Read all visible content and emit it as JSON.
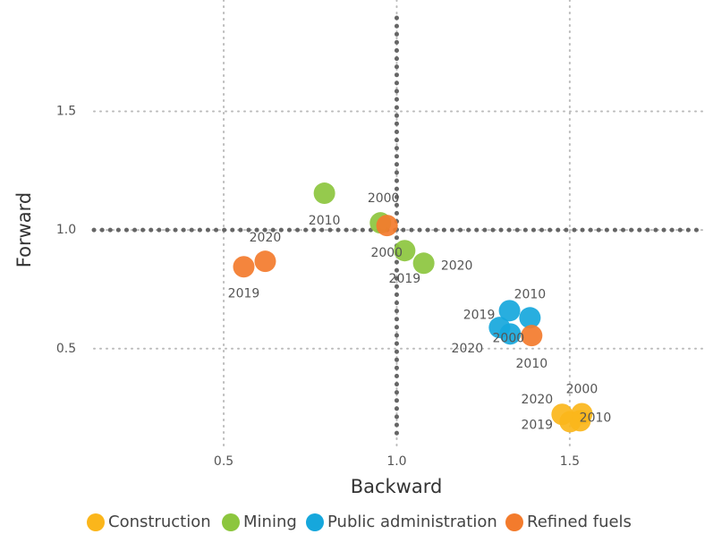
{
  "chart_data": {
    "type": "scatter",
    "xlabel": "Backward",
    "ylabel": "Forward",
    "xlim": [
      0.125,
      1.87
    ],
    "ylim": [
      0.141,
      1.894
    ],
    "xticks": [
      0.5,
      {
        "value": 1,
        "label": "1.0"
      },
      1.5
    ],
    "yticks": [
      0.5,
      {
        "value": 1,
        "label": "1.0"
      },
      1.5
    ],
    "grid": true,
    "reference_x": 1,
    "reference_y": 1,
    "legend": "bottom",
    "series": [
      {
        "name": "Construction",
        "color": "#fbb61b",
        "x": [
          1.535,
          1.53,
          1.501,
          1.478
        ],
        "values": [
          0.226,
          0.196,
          0.192,
          0.223
        ],
        "labels": [
          "2000",
          "2010",
          "2019",
          "2020"
        ]
      },
      {
        "name": "Mining",
        "color": "#8cc63e",
        "x": [
          0.791,
          0.953,
          1.023,
          1.078
        ],
        "values": [
          1.155,
          1.03,
          0.913,
          0.86
        ],
        "labels": [
          "2010",
          "2000",
          "2019",
          "2020"
        ]
      },
      {
        "name": "Public administration",
        "color": "#16a7dc",
        "x": [
          1.385,
          1.326,
          1.328,
          1.297
        ],
        "values": [
          0.63,
          0.66,
          0.562,
          0.589
        ],
        "labels": [
          "2010",
          "2019",
          "2000",
          "2020"
        ]
      },
      {
        "name": "Refined fuels",
        "color": "#f37b2c",
        "x": [
          0.972,
          0.558,
          0.62,
          1.39
        ],
        "values": [
          1.019,
          0.845,
          0.868,
          0.555
        ],
        "labels": [
          "2000",
          "2019",
          "2020",
          "2010"
        ]
      }
    ]
  }
}
